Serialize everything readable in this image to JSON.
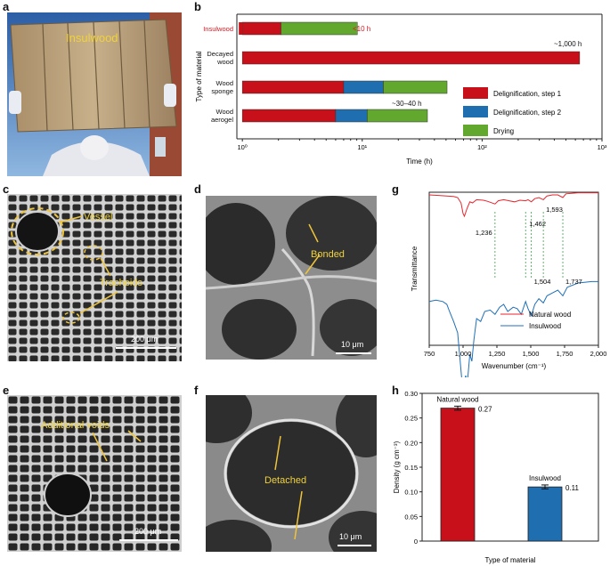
{
  "panel_letters": {
    "a": "a",
    "b": "b",
    "c": "c",
    "d": "d",
    "e": "e",
    "f": "f",
    "g": "g",
    "h": "h"
  },
  "photo_a": {
    "label": "Insulwood",
    "label_color": "#f0d23a"
  },
  "sem_c": {
    "labels": [
      "Vessel",
      "Tracheids"
    ],
    "scalebar": "200 μm"
  },
  "sem_d": {
    "labels": [
      "Bonded"
    ],
    "scalebar": "10 μm"
  },
  "sem_e": {
    "labels": [
      "Additional voids"
    ],
    "scalebar": "200 μm"
  },
  "sem_f": {
    "labels": [
      "Detached"
    ],
    "scalebar": "10 μm"
  },
  "chart_data": [
    {
      "id": "b",
      "type": "bar",
      "orientation": "horizontal-stacked",
      "xscale": "log",
      "xlim": [
        0.9,
        1000
      ],
      "xlabel": "Time (h)",
      "ylabel": "Type of material",
      "x_ticks": [
        1,
        10,
        100,
        1000
      ],
      "x_tick_labels": [
        "10⁰",
        "10¹",
        "10²",
        "10³"
      ],
      "categories": [
        "Insulwood",
        "Decayed wood",
        "Wood sponge",
        "Wood aerogel"
      ],
      "category_colors": [
        "#e0141e",
        "#111111",
        "#111111",
        "#111111"
      ],
      "series": [
        {
          "name": "Delignification, step 1",
          "color": "#c8101a",
          "values": [
            1.1,
            650,
            6,
            5
          ]
        },
        {
          "name": "Delignification, step 2",
          "color": "#1f6fb0",
          "values": [
            0,
            0,
            8,
            5
          ]
        },
        {
          "name": "Drying",
          "color": "#62a82f",
          "values": [
            7,
            0,
            36,
            24
          ]
        }
      ],
      "annotations": [
        {
          "text": "<10 h",
          "color": "#e0141e"
        },
        {
          "text": "~1,000 h",
          "color": "#111111"
        },
        {
          "text": "~30–40 h",
          "color": "#111111"
        }
      ],
      "legend": "right"
    },
    {
      "id": "g",
      "type": "line",
      "xlabel": "Wavenumber (cm⁻¹)",
      "ylabel": "Transmittance",
      "xlim": [
        750,
        2000
      ],
      "x_ticks": [
        750,
        1000,
        1250,
        1500,
        1750,
        2000
      ],
      "x_tick_labels": [
        "750",
        "1,000",
        "1,250",
        "1,500",
        "1,750",
        "2,000"
      ],
      "y_ticks": "none",
      "series": [
        {
          "name": "Natural wood",
          "color": "#e8252b",
          "x": [
            750,
            820,
            880,
            930,
            960,
            985,
            1000,
            1010,
            1030,
            1050,
            1070,
            1100,
            1150,
            1180,
            1236,
            1260,
            1300,
            1340,
            1380,
            1420,
            1462,
            1480,
            1504,
            1530,
            1560,
            1593,
            1620,
            1660,
            1700,
            1737,
            1760,
            1850,
            1950,
            2000
          ],
          "y": [
            0.95,
            0.94,
            0.93,
            0.92,
            0.9,
            0.8,
            0.6,
            0.55,
            0.7,
            0.82,
            0.8,
            0.86,
            0.85,
            0.83,
            0.78,
            0.84,
            0.86,
            0.84,
            0.82,
            0.85,
            0.84,
            0.86,
            0.82,
            0.88,
            0.9,
            0.86,
            0.93,
            0.95,
            0.95,
            0.9,
            0.97,
            0.99,
            0.99,
            0.99
          ]
        },
        {
          "name": "Insulwood",
          "color": "#1f70b8",
          "x": [
            750,
            800,
            850,
            880,
            900,
            930,
            960,
            990,
            1005,
            1020,
            1030,
            1050,
            1065,
            1080,
            1100,
            1130,
            1160,
            1200,
            1236,
            1270,
            1300,
            1330,
            1370,
            1400,
            1430,
            1462,
            1480,
            1504,
            1530,
            1560,
            1593,
            1620,
            1660,
            1700,
            1737,
            1770,
            1850,
            1950,
            2000
          ],
          "y": [
            0.62,
            0.63,
            0.62,
            0.6,
            0.55,
            0.48,
            0.4,
            0.08,
            0.05,
            0.1,
            0.03,
            0.25,
            0.2,
            0.35,
            0.5,
            0.48,
            0.55,
            0.56,
            0.53,
            0.58,
            0.6,
            0.55,
            0.58,
            0.57,
            0.53,
            0.62,
            0.57,
            0.52,
            0.6,
            0.64,
            0.61,
            0.66,
            0.68,
            0.7,
            0.66,
            0.72,
            0.75,
            0.76,
            0.76
          ]
        }
      ],
      "marker_lines": [
        1236,
        1462,
        1504,
        1593,
        1737
      ],
      "peak_labels": [
        "1,236",
        "1,462",
        "1,504",
        "1,593",
        "1,737"
      ],
      "legend": "bottom-right"
    },
    {
      "id": "h",
      "type": "bar",
      "xlabel": "Type of material",
      "ylabel": "Density (g cm⁻³)",
      "ylim": [
        0,
        0.3
      ],
      "y_ticks": [
        0,
        0.05,
        0.1,
        0.15,
        0.2,
        0.25,
        0.3
      ],
      "y_tick_labels": [
        "0",
        "0.05",
        "0.10",
        "0.15",
        "0.20",
        "0.25",
        "0.30"
      ],
      "categories": [
        "Natural wood",
        "Insulwood"
      ],
      "values": [
        0.27,
        0.11
      ],
      "errors": [
        0.004,
        0.004
      ],
      "value_labels": [
        "0.27",
        "0.11"
      ],
      "colors": [
        "#c8101a",
        "#1f6fb0"
      ]
    }
  ]
}
